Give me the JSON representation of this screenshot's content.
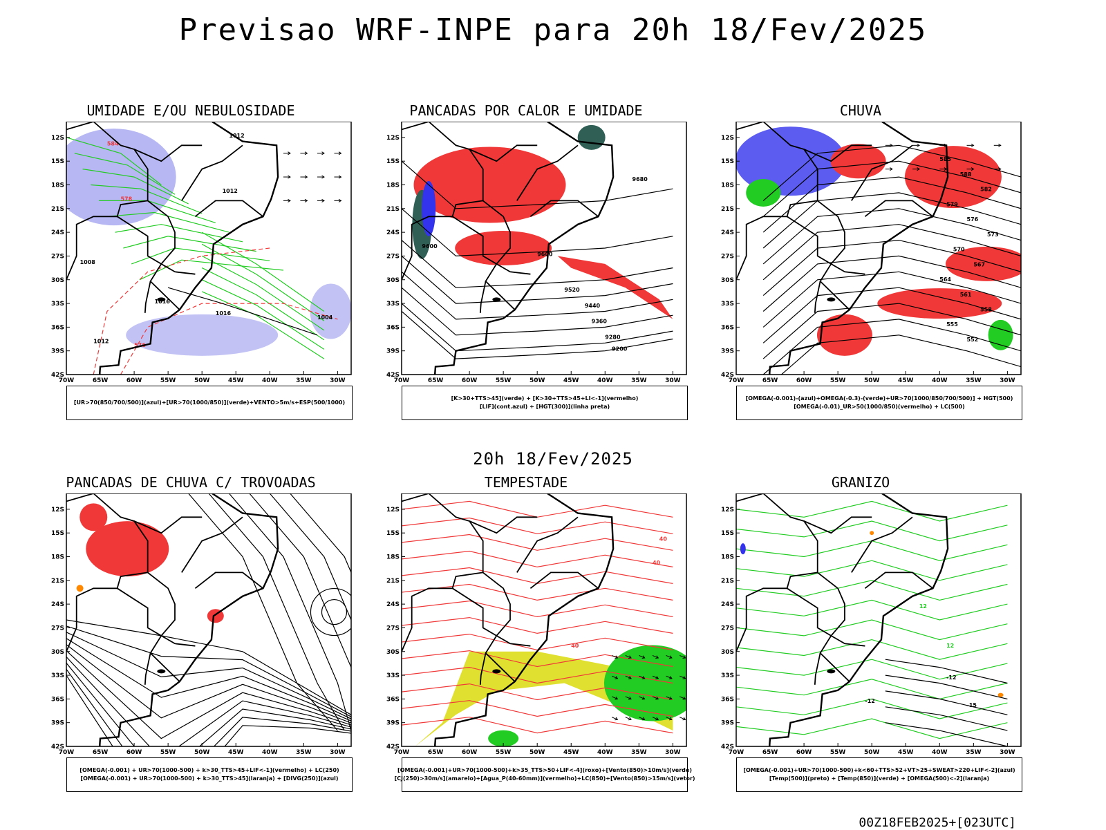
{
  "header": {
    "title": "Previsao WRF-INPE  para 20h 18/Fev/2025",
    "subtitle": "20h 18/Fev/2025",
    "footer": "00Z18FEB2025+[023UTC]"
  },
  "axes": {
    "lat_labels": [
      "12S",
      "15S",
      "18S",
      "21S",
      "24S",
      "27S",
      "30S",
      "33S",
      "36S",
      "39S",
      "42S"
    ],
    "lon_labels": [
      "70W",
      "65W",
      "60W",
      "55W",
      "50W",
      "45W",
      "40W",
      "35W",
      "30W"
    ]
  },
  "colors": {
    "red": "#f03838",
    "green": "#22cc22",
    "blue": "#3333ee",
    "lightblue": "#9999ee",
    "darkgreen": "#2f5f55",
    "yellow": "#e0e030",
    "orange": "#ff8800",
    "black": "#000000"
  },
  "panels": [
    {
      "title": "UMIDADE E/OU NEBULOSIDADE",
      "legend": [
        "[UR>70(850/700/500)](azul)+[UR>70(1000/850)](verde)+VENTO>5m/s+ESP(500/1000)"
      ],
      "contour_labels": [
        "1012",
        "1012",
        "1016",
        "1016",
        "1008",
        "1012",
        "1004",
        "576",
        "578",
        "584"
      ]
    },
    {
      "title": "PANCADAS POR CALOR E UMIDADE",
      "legend": [
        "[K>30+TTS>45](verde) + [K>30+TTS>45+LI<-1](vermelho)",
        "[LIF](cont.azul) + [HGT(300)](linha preta)"
      ],
      "contour_labels": [
        "9680",
        "9600",
        "9600",
        "9520",
        "9440",
        "9360",
        "9280",
        "9200"
      ]
    },
    {
      "title": "CHUVA",
      "legend": [
        "[OMEGA(-0.001)-(azul)+OMEGA(-0.3)-(verde)+UR>70(1000/850/700/500)] + HGT(500)",
        "[OMEGA(-0.01)_UR>50(1000/850)(vermelho) + LC(500)"
      ],
      "contour_labels": [
        "585",
        "588",
        "582",
        "579",
        "576",
        "573",
        "570",
        "567",
        "564",
        "561",
        "558",
        "555",
        "552"
      ]
    },
    {
      "title": "PANCADAS DE CHUVA C/ TROVOADAS",
      "legend": [
        "[OMEGA(-0.001) + UR>70(1000-500) + k>30_TTS>45+LIF<-1](vermelho) + LC(250)",
        "[OMEGA(-0.001) + UR>70(1000-500) + k>30_TTS>45](laranja) + [DIVG(250)](azul)"
      ],
      "contour_labels": []
    },
    {
      "title": "TEMPESTADE",
      "legend": [
        "[OMEGA(-0.001)+UR>70(1000-500)+k>35_TTS>50+LIF<-4](roxo)+[Vento(850)>10m/s](verde)",
        "[CJ(250)>30m/s](amarelo)+[Agua_P(40-60mm)](vermelho)+LC(850)+[Vento(850)>15m/s](vetor)"
      ],
      "contour_labels": [
        "40",
        "40",
        "40"
      ]
    },
    {
      "title": "GRANIZO",
      "legend": [
        "[OMEGA(-0.001)+UR>70(1000-500)+k<60+TTS>52+VT>25+SWEAT>220+LIF<-2](azul)",
        "[Temp(500)](preto) + [Temp(850)](verde) + [OMEGA(500)<-2](laranja)"
      ],
      "contour_labels": [
        "-12",
        "-12",
        "-15",
        "12",
        "12"
      ]
    }
  ]
}
